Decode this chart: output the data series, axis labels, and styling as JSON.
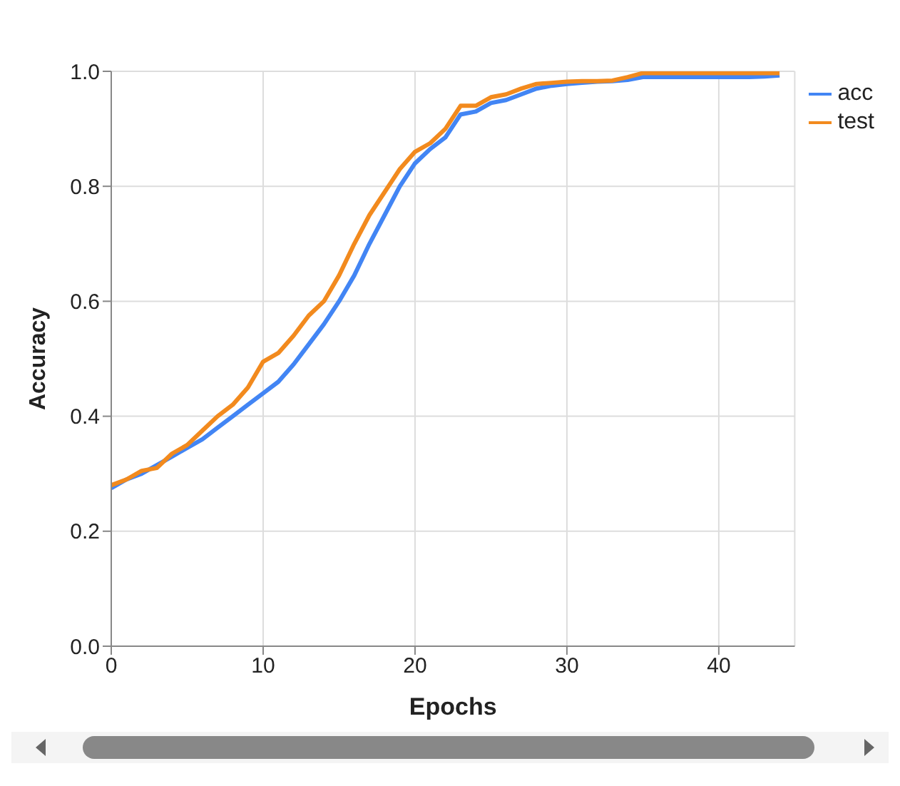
{
  "chart_data": {
    "type": "line",
    "xlabel": "Epochs",
    "ylabel": "Accuracy",
    "x": [
      0,
      1,
      2,
      3,
      4,
      5,
      6,
      7,
      8,
      9,
      10,
      11,
      12,
      13,
      14,
      15,
      16,
      17,
      18,
      19,
      20,
      21,
      22,
      23,
      24,
      25,
      26,
      27,
      28,
      29,
      30,
      31,
      32,
      33,
      34,
      35,
      36,
      37,
      38,
      39,
      40,
      41,
      42,
      43,
      44
    ],
    "series": [
      {
        "name": "acc",
        "color": "#4285f4",
        "values": [
          0.275,
          0.29,
          0.3,
          0.315,
          0.33,
          0.345,
          0.36,
          0.38,
          0.4,
          0.42,
          0.44,
          0.46,
          0.49,
          0.525,
          0.56,
          0.6,
          0.645,
          0.7,
          0.75,
          0.8,
          0.84,
          0.865,
          0.885,
          0.925,
          0.93,
          0.945,
          0.95,
          0.96,
          0.97,
          0.975,
          0.978,
          0.98,
          0.982,
          0.983,
          0.985,
          0.99,
          0.99,
          0.99,
          0.99,
          0.99,
          0.99,
          0.99,
          0.99,
          0.991,
          0.993
        ]
      },
      {
        "name": "test",
        "color": "#f28a1e",
        "values": [
          0.28,
          0.29,
          0.305,
          0.31,
          0.335,
          0.35,
          0.375,
          0.4,
          0.42,
          0.45,
          0.495,
          0.51,
          0.54,
          0.575,
          0.6,
          0.645,
          0.7,
          0.75,
          0.79,
          0.83,
          0.86,
          0.875,
          0.9,
          0.94,
          0.94,
          0.955,
          0.96,
          0.97,
          0.978,
          0.98,
          0.982,
          0.983,
          0.983,
          0.984,
          0.99,
          0.997,
          0.997,
          0.997,
          0.997,
          0.997,
          0.997,
          0.997,
          0.997,
          0.997,
          0.997
        ]
      }
    ],
    "xlim": [
      0,
      45
    ],
    "xticks": [
      0,
      10,
      20,
      30,
      40
    ],
    "ylim": [
      0,
      1
    ],
    "yticks": [
      {
        "value": 0,
        "label": "0.0"
      },
      {
        "value": 0.2,
        "label": "0.2"
      },
      {
        "value": 0.4,
        "label": "0.4"
      },
      {
        "value": 0.6,
        "label": "0.6"
      },
      {
        "value": 0.8,
        "label": "0.8"
      },
      {
        "value": 1,
        "label": "1.0"
      }
    ],
    "grid": true,
    "legend": "top right",
    "marker": "none",
    "line_style": "solid"
  }
}
